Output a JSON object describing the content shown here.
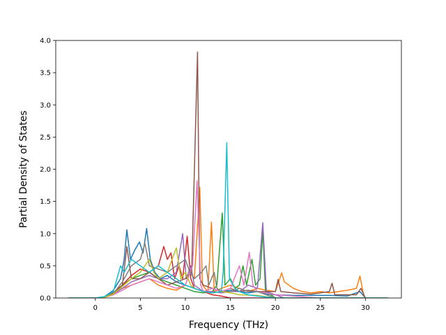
{
  "chart_data": {
    "type": "line",
    "title": "",
    "xlabel": "Frequency (THz)",
    "ylabel": "Partial Density of States",
    "xlim": [
      -4.4,
      34.0
    ],
    "ylim": [
      0.0,
      4.0
    ],
    "xticks": [
      0,
      5,
      10,
      15,
      20,
      25,
      30
    ],
    "yticks": [
      0.0,
      0.5,
      1.0,
      1.5,
      2.0,
      2.5,
      3.0,
      3.5,
      4.0
    ],
    "grid": false,
    "legend": "none",
    "series": [
      {
        "color": "#1f77b4",
        "points": [
          [
            -3,
            0
          ],
          [
            0,
            0
          ],
          [
            1,
            0.02
          ],
          [
            2,
            0.12
          ],
          [
            2.8,
            0.3
          ],
          [
            3.2,
            0.6
          ],
          [
            3.5,
            1.06
          ],
          [
            3.9,
            0.6
          ],
          [
            4.4,
            0.75
          ],
          [
            4.9,
            0.87
          ],
          [
            5.3,
            0.7
          ],
          [
            5.7,
            1.08
          ],
          [
            6.1,
            0.6
          ],
          [
            6.6,
            0.4
          ],
          [
            7.2,
            0.3
          ],
          [
            8,
            0.35
          ],
          [
            9,
            0.25
          ],
          [
            10,
            0.2
          ],
          [
            11,
            0.15
          ],
          [
            12,
            0.1
          ],
          [
            13,
            0.08
          ],
          [
            14,
            0.1
          ],
          [
            15,
            0.12
          ],
          [
            16,
            0.1
          ],
          [
            17,
            0.08
          ],
          [
            18,
            0.1
          ],
          [
            19,
            0.06
          ],
          [
            20,
            0.05
          ],
          [
            22,
            0.04
          ],
          [
            24,
            0.04
          ],
          [
            26,
            0.04
          ],
          [
            28,
            0.03
          ],
          [
            29.4,
            0.1
          ],
          [
            30,
            0
          ],
          [
            32.5,
            0
          ]
        ]
      },
      {
        "color": "#ff7f0e",
        "points": [
          [
            -3,
            0
          ],
          [
            0,
            0
          ],
          [
            1,
            0.01
          ],
          [
            2,
            0.06
          ],
          [
            3,
            0.15
          ],
          [
            4,
            0.2
          ],
          [
            5,
            0.25
          ],
          [
            6,
            0.3
          ],
          [
            7,
            0.2
          ],
          [
            8,
            0.15
          ],
          [
            9,
            0.12
          ],
          [
            10,
            0.2
          ],
          [
            10.5,
            0.4
          ],
          [
            11,
            0.3
          ],
          [
            11.6,
            1.72
          ],
          [
            11.9,
            0.2
          ],
          [
            12.5,
            0.1
          ],
          [
            12.9,
            1.18
          ],
          [
            13.2,
            0.1
          ],
          [
            14,
            0.15
          ],
          [
            15,
            0.2
          ],
          [
            16,
            0.15
          ],
          [
            17,
            0.1
          ],
          [
            18,
            0.15
          ],
          [
            19,
            0.12
          ],
          [
            20,
            0.1
          ],
          [
            20.7,
            0.39
          ],
          [
            21,
            0.25
          ],
          [
            22,
            0.15
          ],
          [
            23,
            0.1
          ],
          [
            24,
            0.08
          ],
          [
            25,
            0.1
          ],
          [
            26,
            0.08
          ],
          [
            27,
            0.1
          ],
          [
            28,
            0.12
          ],
          [
            29,
            0.15
          ],
          [
            29.4,
            0.34
          ],
          [
            29.8,
            0.05
          ],
          [
            30,
            0
          ],
          [
            32.5,
            0
          ]
        ]
      },
      {
        "color": "#2ca02c",
        "points": [
          [
            -3,
            0
          ],
          [
            0,
            0
          ],
          [
            1,
            0.01
          ],
          [
            2,
            0.08
          ],
          [
            3,
            0.2
          ],
          [
            4,
            0.3
          ],
          [
            5,
            0.35
          ],
          [
            6,
            0.4
          ],
          [
            7,
            0.3
          ],
          [
            8,
            0.25
          ],
          [
            9,
            0.2
          ],
          [
            10,
            0.15
          ],
          [
            11,
            0.1
          ],
          [
            12,
            0.08
          ],
          [
            13,
            0.1
          ],
          [
            13.5,
            0.2
          ],
          [
            14.1,
            1.32
          ],
          [
            14.4,
            0.2
          ],
          [
            15,
            0.3
          ],
          [
            15.5,
            0.15
          ],
          [
            16,
            0.2
          ],
          [
            16.4,
            0.5
          ],
          [
            16.8,
            0.2
          ],
          [
            17.4,
            0.6
          ],
          [
            17.8,
            0.2
          ],
          [
            18.3,
            0.3
          ],
          [
            18.6,
            1.07
          ],
          [
            18.9,
            0.1
          ],
          [
            19.5,
            0.05
          ],
          [
            20,
            0
          ],
          [
            32.5,
            0
          ]
        ]
      },
      {
        "color": "#d62728",
        "points": [
          [
            -3,
            0
          ],
          [
            0,
            0
          ],
          [
            1,
            0.01
          ],
          [
            2,
            0.08
          ],
          [
            3,
            0.2
          ],
          [
            4,
            0.35
          ],
          [
            5,
            0.45
          ],
          [
            6,
            0.4
          ],
          [
            7,
            0.5
          ],
          [
            7.6,
            0.8
          ],
          [
            8,
            0.6
          ],
          [
            8.4,
            0.7
          ],
          [
            8.8,
            0.3
          ],
          [
            9.3,
            0.5
          ],
          [
            9.7,
            0.3
          ],
          [
            10.2,
            0.96
          ],
          [
            10.6,
            0.3
          ],
          [
            11,
            0.15
          ],
          [
            12,
            0.1
          ],
          [
            13,
            0.05
          ],
          [
            14,
            0.03
          ],
          [
            15,
            0
          ],
          [
            32.5,
            0
          ]
        ]
      },
      {
        "color": "#9467bd",
        "points": [
          [
            -3,
            0
          ],
          [
            0,
            0
          ],
          [
            1,
            0.01
          ],
          [
            2,
            0.06
          ],
          [
            3,
            0.15
          ],
          [
            4,
            0.25
          ],
          [
            5,
            0.3
          ],
          [
            6,
            0.35
          ],
          [
            7,
            0.3
          ],
          [
            8,
            0.3
          ],
          [
            9,
            0.4
          ],
          [
            9.7,
            1.0
          ],
          [
            10.1,
            0.3
          ],
          [
            10.6,
            0.5
          ],
          [
            11,
            0.2
          ],
          [
            12,
            0.1
          ],
          [
            13,
            0.1
          ],
          [
            14,
            0.08
          ],
          [
            15,
            0.1
          ],
          [
            16,
            0.1
          ],
          [
            17,
            0.2
          ],
          [
            18,
            0.15
          ],
          [
            18.6,
            1.17
          ],
          [
            19,
            0.1
          ],
          [
            20,
            0.05
          ],
          [
            21,
            0
          ],
          [
            32.5,
            0
          ]
        ]
      },
      {
        "color": "#8c564b",
        "points": [
          [
            -3,
            0
          ],
          [
            0,
            0
          ],
          [
            1,
            0.01
          ],
          [
            2,
            0.05
          ],
          [
            3,
            0.2
          ],
          [
            3.5,
            0.8
          ],
          [
            4,
            0.3
          ],
          [
            5,
            0.3
          ],
          [
            6,
            0.4
          ],
          [
            7,
            0.3
          ],
          [
            8,
            0.2
          ],
          [
            9,
            0.25
          ],
          [
            10,
            0.3
          ],
          [
            10.7,
            0.4
          ],
          [
            11.35,
            3.82
          ],
          [
            11.6,
            0.3
          ],
          [
            12,
            0.2
          ],
          [
            13,
            0.15
          ],
          [
            14,
            0.1
          ],
          [
            15,
            0.15
          ],
          [
            16,
            0.1
          ],
          [
            17,
            0.12
          ],
          [
            18,
            0.1
          ],
          [
            19,
            0.1
          ],
          [
            20,
            0.1
          ],
          [
            20.3,
            0.29
          ],
          [
            20.6,
            0.1
          ],
          [
            22,
            0.08
          ],
          [
            24,
            0.06
          ],
          [
            25,
            0.08
          ],
          [
            26,
            0.1
          ],
          [
            26.3,
            0.23
          ],
          [
            26.6,
            0.05
          ],
          [
            28,
            0.05
          ],
          [
            29,
            0.05
          ],
          [
            29.5,
            0.15
          ],
          [
            30,
            0
          ],
          [
            32.5,
            0
          ]
        ]
      },
      {
        "color": "#e377c2",
        "points": [
          [
            -3,
            0
          ],
          [
            0,
            0
          ],
          [
            1,
            0.01
          ],
          [
            2,
            0.05
          ],
          [
            3,
            0.12
          ],
          [
            4,
            0.2
          ],
          [
            5,
            0.25
          ],
          [
            6,
            0.3
          ],
          [
            7,
            0.25
          ],
          [
            8,
            0.2
          ],
          [
            9,
            0.15
          ],
          [
            10,
            0.2
          ],
          [
            10.8,
            0.5
          ],
          [
            11.3,
            1.82
          ],
          [
            11.7,
            0.2
          ],
          [
            12,
            0.1
          ],
          [
            13,
            0.15
          ],
          [
            14,
            0.1
          ],
          [
            15,
            0.15
          ],
          [
            16,
            0.5
          ],
          [
            16.5,
            0.2
          ],
          [
            17.1,
            0.71
          ],
          [
            17.5,
            0.2
          ],
          [
            18,
            0.1
          ],
          [
            19,
            0.08
          ],
          [
            20,
            0.05
          ],
          [
            22,
            0.03
          ],
          [
            25,
            0
          ],
          [
            32.5,
            0
          ]
        ]
      },
      {
        "color": "#7f7f7f",
        "points": [
          [
            -3,
            0
          ],
          [
            0,
            0
          ],
          [
            1,
            0.01
          ],
          [
            2,
            0.07
          ],
          [
            3,
            0.25
          ],
          [
            4,
            0.5
          ],
          [
            5,
            0.6
          ],
          [
            5.5,
            0.85
          ],
          [
            6,
            0.5
          ],
          [
            7,
            0.45
          ],
          [
            8,
            0.4
          ],
          [
            9,
            0.5
          ],
          [
            10,
            0.6
          ],
          [
            10.5,
            0.4
          ],
          [
            11,
            0.3
          ],
          [
            11.8,
            0.4
          ],
          [
            12.3,
            0.5
          ],
          [
            12.6,
            0.2
          ],
          [
            13.2,
            0.4
          ],
          [
            13.5,
            0.15
          ],
          [
            14,
            0.1
          ],
          [
            15,
            0.1
          ],
          [
            16,
            0.15
          ],
          [
            17,
            0.1
          ],
          [
            18,
            0.1
          ],
          [
            19,
            0.05
          ],
          [
            20,
            0
          ],
          [
            32.5,
            0
          ]
        ]
      },
      {
        "color": "#bcbd22",
        "points": [
          [
            -3,
            0
          ],
          [
            0,
            0
          ],
          [
            1,
            0.01
          ],
          [
            2,
            0.06
          ],
          [
            3,
            0.18
          ],
          [
            4,
            0.3
          ],
          [
            5,
            0.4
          ],
          [
            6,
            0.6
          ],
          [
            6.5,
            0.4
          ],
          [
            7,
            0.3
          ],
          [
            8,
            0.4
          ],
          [
            9,
            0.78
          ],
          [
            9.5,
            0.3
          ],
          [
            10,
            0.4
          ],
          [
            10.6,
            0.2
          ],
          [
            11,
            0.15
          ],
          [
            12,
            0.1
          ],
          [
            13,
            0.08
          ],
          [
            14,
            0.1
          ],
          [
            15,
            0.08
          ],
          [
            16,
            0.05
          ],
          [
            18,
            0.04
          ],
          [
            20,
            0
          ],
          [
            32.5,
            0
          ]
        ]
      },
      {
        "color": "#17becf",
        "points": [
          [
            -3,
            0
          ],
          [
            0,
            0
          ],
          [
            1,
            0.02
          ],
          [
            2,
            0.1
          ],
          [
            2.8,
            0.5
          ],
          [
            3.2,
            0.4
          ],
          [
            4,
            0.6
          ],
          [
            5,
            0.5
          ],
          [
            6,
            0.4
          ],
          [
            7,
            0.5
          ],
          [
            8,
            0.4
          ],
          [
            9,
            0.3
          ],
          [
            10,
            0.2
          ],
          [
            11,
            0.15
          ],
          [
            12,
            0.1
          ],
          [
            13,
            0.08
          ],
          [
            14,
            0.1
          ],
          [
            14.2,
            0.4
          ],
          [
            14.6,
            2.41
          ],
          [
            14.9,
            0.3
          ],
          [
            15.5,
            0.15
          ],
          [
            16,
            0.1
          ],
          [
            17,
            0.05
          ],
          [
            18,
            0.03
          ],
          [
            20,
            0
          ],
          [
            32.5,
            0
          ]
        ]
      }
    ]
  }
}
